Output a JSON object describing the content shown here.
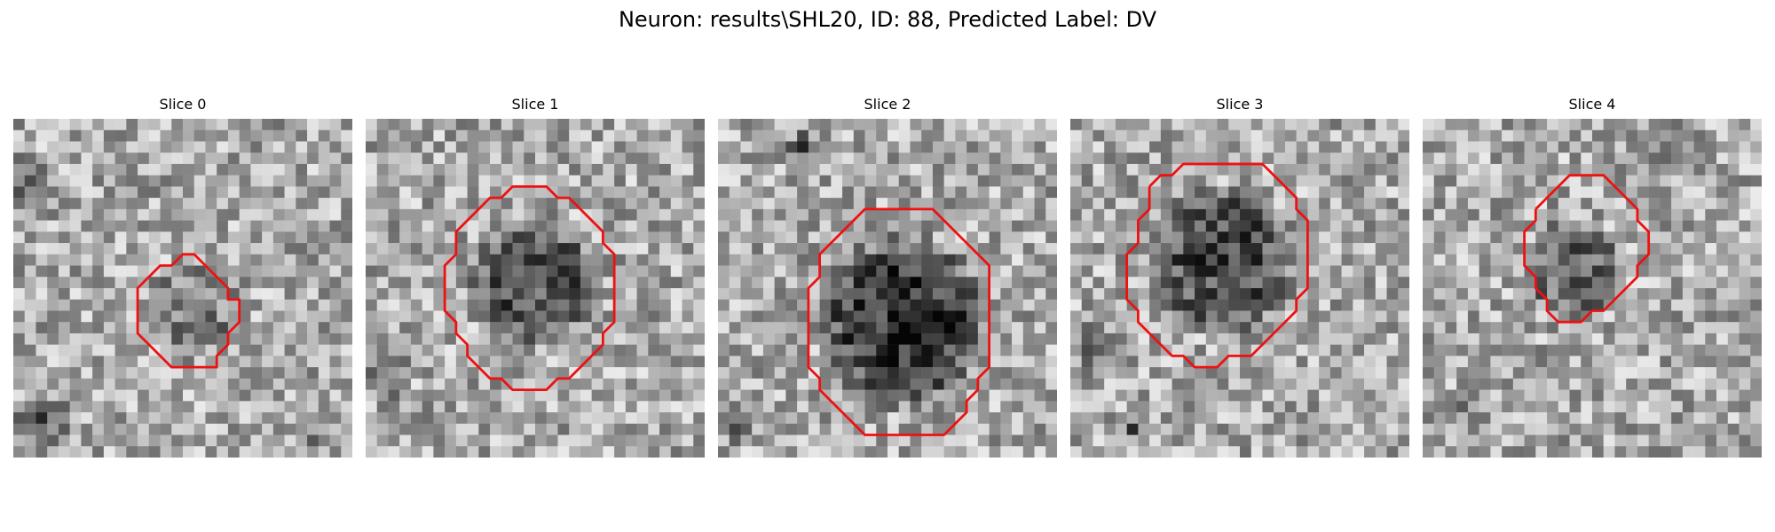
{
  "figure": {
    "title": "Neuron: results\\SHL20, ID: 88, Predicted Label: DV"
  },
  "panels": [
    {
      "title": "Slice 0",
      "seed": 11,
      "blob": {
        "cx": 15.8,
        "cy": 17.2,
        "r": 4.5,
        "dark": 0.18
      },
      "extra_dark": [
        [
          1,
          5,
          3
        ],
        [
          2,
          26,
          3
        ],
        [
          26,
          28,
          2
        ]
      ],
      "contour": [
        [
          12,
          14
        ],
        [
          13,
          13
        ],
        [
          14,
          13
        ],
        [
          15,
          12
        ],
        [
          16,
          12
        ],
        [
          17,
          13
        ],
        [
          18,
          14
        ],
        [
          19,
          15
        ],
        [
          19,
          16
        ],
        [
          20,
          16
        ],
        [
          20,
          17
        ],
        [
          20,
          18
        ],
        [
          19,
          19
        ],
        [
          19,
          20
        ],
        [
          18,
          21
        ],
        [
          18,
          22
        ],
        [
          16,
          22
        ],
        [
          15,
          22
        ],
        [
          14,
          22
        ],
        [
          13,
          21
        ],
        [
          12,
          20
        ],
        [
          11,
          19
        ],
        [
          11,
          18
        ],
        [
          11,
          17
        ],
        [
          11,
          16
        ],
        [
          11,
          15
        ],
        [
          12,
          14
        ]
      ]
    },
    {
      "title": "Slice 1",
      "seed": 23,
      "blob": {
        "cx": 14.7,
        "cy": 14.5,
        "r": 6.3,
        "dark": 0.35
      },
      "extra_dark": [
        [
          1,
          22,
          3
        ]
      ],
      "contour": [
        [
          9,
          9
        ],
        [
          10,
          8
        ],
        [
          11,
          7
        ],
        [
          12,
          7
        ],
        [
          13,
          6
        ],
        [
          14,
          6
        ],
        [
          15,
          6
        ],
        [
          16,
          6
        ],
        [
          17,
          7
        ],
        [
          18,
          7
        ],
        [
          19,
          8
        ],
        [
          20,
          9
        ],
        [
          21,
          10
        ],
        [
          21,
          11
        ],
        [
          22,
          12
        ],
        [
          22,
          13
        ],
        [
          22,
          14
        ],
        [
          22,
          15
        ],
        [
          22,
          16
        ],
        [
          22,
          17
        ],
        [
          22,
          18
        ],
        [
          21,
          19
        ],
        [
          21,
          20
        ],
        [
          20,
          21
        ],
        [
          19,
          22
        ],
        [
          18,
          23
        ],
        [
          17,
          23
        ],
        [
          16,
          24
        ],
        [
          15,
          24
        ],
        [
          14,
          24
        ],
        [
          13,
          24
        ],
        [
          12,
          23
        ],
        [
          11,
          23
        ],
        [
          10,
          22
        ],
        [
          9,
          21
        ],
        [
          9,
          20
        ],
        [
          8,
          19
        ],
        [
          8,
          18
        ],
        [
          7,
          17
        ],
        [
          7,
          16
        ],
        [
          7,
          15
        ],
        [
          7,
          14
        ],
        [
          7,
          13
        ],
        [
          8,
          12
        ],
        [
          8,
          11
        ],
        [
          8,
          10
        ],
        [
          9,
          9
        ]
      ]
    },
    {
      "title": "Slice 2",
      "seed": 37,
      "blob": {
        "cx": 16.5,
        "cy": 18,
        "r": 8,
        "dark": 0.48
      },
      "extra_dark": [
        [
          7,
          2,
          2
        ],
        [
          1,
          27,
          2
        ]
      ],
      "contour": [
        [
          10,
          11
        ],
        [
          11,
          10
        ],
        [
          12,
          9
        ],
        [
          13,
          8
        ],
        [
          14,
          8
        ],
        [
          15,
          8
        ],
        [
          16,
          8
        ],
        [
          17,
          8
        ],
        [
          18,
          8
        ],
        [
          19,
          8
        ],
        [
          20,
          9
        ],
        [
          21,
          10
        ],
        [
          22,
          11
        ],
        [
          23,
          12
        ],
        [
          24,
          13
        ],
        [
          24,
          14
        ],
        [
          24,
          15
        ],
        [
          24,
          16
        ],
        [
          24,
          17
        ],
        [
          24,
          18
        ],
        [
          24,
          19
        ],
        [
          24,
          20
        ],
        [
          24,
          21
        ],
        [
          24,
          22
        ],
        [
          23,
          23
        ],
        [
          23,
          24
        ],
        [
          22,
          25
        ],
        [
          22,
          26
        ],
        [
          21,
          27
        ],
        [
          20,
          28
        ],
        [
          19,
          28
        ],
        [
          18,
          28
        ],
        [
          17,
          28
        ],
        [
          16,
          28
        ],
        [
          15,
          28
        ],
        [
          14,
          28
        ],
        [
          13,
          28
        ],
        [
          12,
          27
        ],
        [
          11,
          26
        ],
        [
          10,
          25
        ],
        [
          9,
          24
        ],
        [
          9,
          23
        ],
        [
          8,
          22
        ],
        [
          8,
          21
        ],
        [
          8,
          20
        ],
        [
          8,
          19
        ],
        [
          8,
          18
        ],
        [
          8,
          17
        ],
        [
          8,
          16
        ],
        [
          8,
          15
        ],
        [
          9,
          14
        ],
        [
          9,
          13
        ],
        [
          9,
          12
        ],
        [
          10,
          11
        ]
      ]
    },
    {
      "title": "Slice 3",
      "seed": 41,
      "blob": {
        "cx": 13.5,
        "cy": 12.5,
        "r": 7,
        "dark": 0.38
      },
      "extra_dark": [
        [
          2,
          20,
          3
        ],
        [
          5,
          27,
          2
        ]
      ],
      "contour": [
        [
          7,
          6
        ],
        [
          8,
          5
        ],
        [
          9,
          5
        ],
        [
          10,
          4
        ],
        [
          11,
          4
        ],
        [
          12,
          4
        ],
        [
          13,
          4
        ],
        [
          14,
          4
        ],
        [
          15,
          4
        ],
        [
          16,
          4
        ],
        [
          17,
          4
        ],
        [
          18,
          5
        ],
        [
          19,
          6
        ],
        [
          20,
          7
        ],
        [
          20,
          8
        ],
        [
          21,
          9
        ],
        [
          21,
          10
        ],
        [
          21,
          11
        ],
        [
          21,
          12
        ],
        [
          21,
          13
        ],
        [
          21,
          14
        ],
        [
          21,
          15
        ],
        [
          20,
          16
        ],
        [
          20,
          17
        ],
        [
          19,
          18
        ],
        [
          18,
          19
        ],
        [
          17,
          20
        ],
        [
          16,
          21
        ],
        [
          15,
          21
        ],
        [
          14,
          21
        ],
        [
          13,
          22
        ],
        [
          12,
          22
        ],
        [
          11,
          22
        ],
        [
          10,
          21
        ],
        [
          9,
          21
        ],
        [
          8,
          20
        ],
        [
          7,
          19
        ],
        [
          6,
          18
        ],
        [
          6,
          17
        ],
        [
          5,
          16
        ],
        [
          5,
          15
        ],
        [
          5,
          14
        ],
        [
          5,
          13
        ],
        [
          5,
          12
        ],
        [
          6,
          11
        ],
        [
          6,
          10
        ],
        [
          6,
          9
        ],
        [
          7,
          8
        ],
        [
          7,
          7
        ],
        [
          7,
          6
        ]
      ]
    },
    {
      "title": "Slice 4",
      "seed": 53,
      "blob": {
        "cx": 13.5,
        "cy": 13.5,
        "r": 5,
        "dark": 0.28
      },
      "extra_dark": [
        [
          21,
          2,
          3
        ],
        [
          2,
          25,
          2
        ]
      ],
      "contour": [
        [
          10,
          8
        ],
        [
          11,
          7
        ],
        [
          12,
          6
        ],
        [
          13,
          5
        ],
        [
          14,
          5
        ],
        [
          15,
          5
        ],
        [
          16,
          5
        ],
        [
          17,
          6
        ],
        [
          18,
          7
        ],
        [
          19,
          8
        ],
        [
          19,
          9
        ],
        [
          20,
          10
        ],
        [
          20,
          11
        ],
        [
          20,
          12
        ],
        [
          19,
          13
        ],
        [
          19,
          14
        ],
        [
          18,
          15
        ],
        [
          17,
          16
        ],
        [
          16,
          17
        ],
        [
          15,
          17
        ],
        [
          14,
          18
        ],
        [
          13,
          18
        ],
        [
          12,
          18
        ],
        [
          11,
          17
        ],
        [
          11,
          16
        ],
        [
          10,
          15
        ],
        [
          10,
          14
        ],
        [
          9,
          13
        ],
        [
          9,
          12
        ],
        [
          9,
          11
        ],
        [
          9,
          10
        ],
        [
          10,
          9
        ],
        [
          10,
          8
        ]
      ]
    }
  ],
  "colors": {
    "contour": "#ee1111"
  }
}
